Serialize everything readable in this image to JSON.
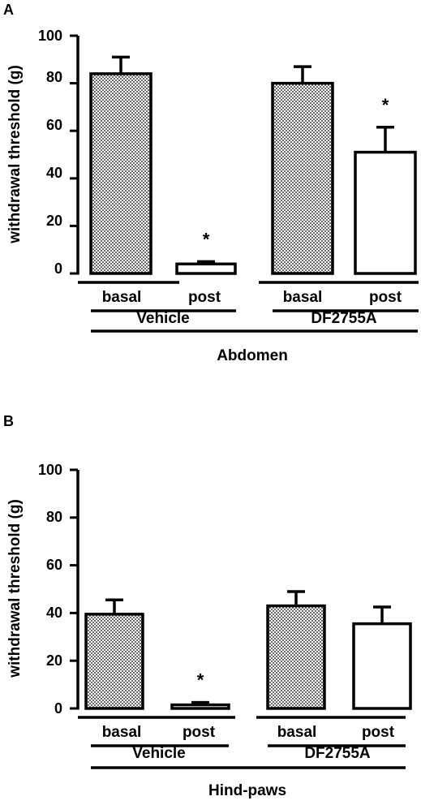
{
  "chart_data": [
    {
      "type": "bar",
      "panel_label": "A",
      "ylabel": "withdrawal threshold (g)",
      "ylim": [
        0,
        100
      ],
      "yticks": [
        "0",
        "20",
        "40",
        "60",
        "80",
        "100"
      ],
      "bars": [
        {
          "label": "basal",
          "group": "Vehicle",
          "value": 84,
          "error": 7,
          "pattern": "checker",
          "significant": false
        },
        {
          "label": "post",
          "group": "Vehicle",
          "value": 4,
          "error": 1,
          "pattern": "open",
          "significant": true
        },
        {
          "label": "basal",
          "group": "DF2755A",
          "value": 80,
          "error": 7,
          "pattern": "checker",
          "significant": false
        },
        {
          "label": "post",
          "group": "DF2755A",
          "value": 51,
          "error": 10.5,
          "pattern": "open",
          "significant": true
        }
      ],
      "groups": [
        "Vehicle",
        "DF2755A"
      ],
      "section_label": "Abdomen",
      "significance_marker": "*"
    },
    {
      "type": "bar",
      "panel_label": "B",
      "ylabel": "withdrawal threshold (g)",
      "ylim": [
        0,
        100
      ],
      "yticks": [
        "0",
        "20",
        "40",
        "60",
        "80",
        "100"
      ],
      "bars": [
        {
          "label": "basal",
          "group": "Vehicle",
          "value": 39.5,
          "error": 6,
          "pattern": "checker",
          "significant": false
        },
        {
          "label": "post",
          "group": "Vehicle",
          "value": 1.5,
          "error": 1,
          "pattern": "open",
          "significant": true
        },
        {
          "label": "basal",
          "group": "DF2755A",
          "value": 43,
          "error": 6,
          "pattern": "checker",
          "significant": false
        },
        {
          "label": "post",
          "group": "DF2755A",
          "value": 35.5,
          "error": 7,
          "pattern": "open",
          "significant": false
        }
      ],
      "groups": [
        "Vehicle",
        "DF2755A"
      ],
      "section_label": "Hind-paws",
      "significance_marker": "*"
    }
  ]
}
